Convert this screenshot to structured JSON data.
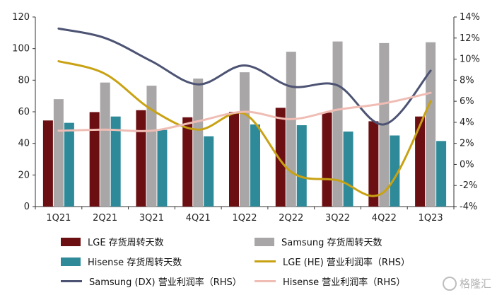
{
  "chart_data": {
    "type": "bar",
    "categories": [
      "1Q21",
      "2Q21",
      "3Q21",
      "4Q21",
      "1Q22",
      "2Q22",
      "3Q22",
      "4Q22",
      "1Q23"
    ],
    "y_left": {
      "ylim": [
        0,
        120
      ],
      "ticks": [
        "0",
        "20",
        "40",
        "60",
        "80",
        "100",
        "120"
      ]
    },
    "y_right": {
      "ylim": [
        -4,
        14
      ],
      "ticks": [
        "-4%",
        "-2%",
        "0%",
        "2%",
        "4%",
        "6%",
        "8%",
        "10%",
        "12%",
        "14%"
      ]
    },
    "bar_series": [
      {
        "name": "LGE 存货周转天数",
        "color": "#6b0f12",
        "values": [
          54.5,
          59.8,
          61,
          56.5,
          60,
          62.5,
          59.5,
          54,
          57
        ]
      },
      {
        "name": "Samsung 存货周转天数",
        "color": "#a8a6a6",
        "values": [
          68,
          78.5,
          76.5,
          81,
          85,
          98,
          104.5,
          103.5,
          104
        ]
      },
      {
        "name": "Hisense 存货周转天数",
        "color": "#2e8a99",
        "values": [
          53,
          57,
          48.5,
          44.5,
          52,
          51.5,
          47.5,
          45,
          41.5
        ]
      }
    ],
    "line_series": [
      {
        "name": "LGE (HE) 营业利润率（RHS）",
        "color": "#c9a214",
        "values": [
          9.8,
          8.6,
          5.2,
          3.3,
          4.8,
          -0.7,
          -1.5,
          -2.6,
          6.0
        ]
      },
      {
        "name": "Samsung (DX) 营业利润率（RHS）",
        "color": "#4d5373",
        "values": [
          12.9,
          12.0,
          9.8,
          7.6,
          9.4,
          7.4,
          7.5,
          3.8,
          8.9
        ]
      },
      {
        "name": "Hisense 营业利润率（RHS）",
        "color": "#f0bdb5",
        "values": [
          3.2,
          3.3,
          3.2,
          4.1,
          5.0,
          4.3,
          5.2,
          5.8,
          6.8
        ]
      }
    ],
    "legend_position": "bottom",
    "grid": false
  },
  "watermark": {
    "text": "格隆汇"
  }
}
